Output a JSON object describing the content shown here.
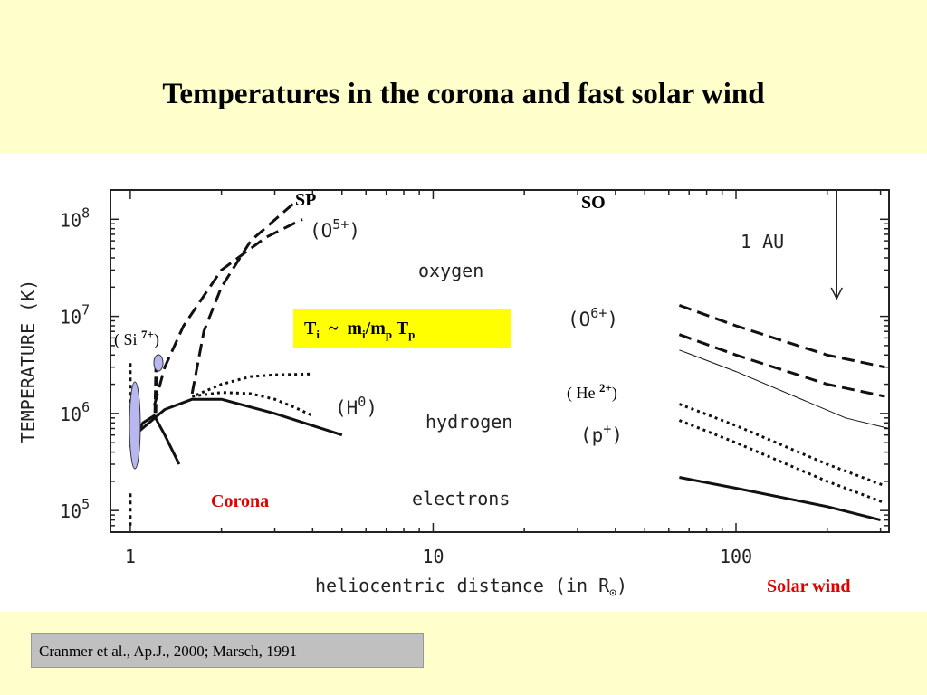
{
  "slide": {
    "title": "Temperatures in the corona and fast solar wind",
    "source": "Cranmer et al., Ap.J., 2000;  Marsch, 1991"
  },
  "formula": {
    "t1": "T",
    "s1": "i",
    "op": "  ~  ",
    "m1": "m",
    "s2": "i",
    "slash": "/m",
    "s3": "p",
    "t2": " T",
    "s4": "p"
  },
  "colors": {
    "background": "#ffffcc",
    "formula_box": "#ffff00",
    "red_label": "#e00000",
    "si_marker": "#b8b8f0"
  },
  "annotations": {
    "sp": "SP",
    "so": "SO",
    "corona": "Corona",
    "solar_wind": "Solar wind",
    "si_base": "( Si ",
    "si_sup": "7+",
    "si_close": ")",
    "he_base": "( He ",
    "he_sup": "2+",
    "he_close": ")",
    "one_au": "1  AU",
    "o5_base": "(O",
    "o5_sup": "5+",
    "o5_close": ")",
    "o6_base": "(O",
    "o6_sup": "6+",
    "o6_close": ")",
    "h0_base": "(H",
    "h0_sup": "0",
    "h0_close": ")",
    "p_base": "(p",
    "p_sup": "+",
    "p_close": ")",
    "oxygen": "oxygen",
    "hydrogen": "hydrogen",
    "electrons": "electrons"
  },
  "chart_data": {
    "type": "line",
    "xlabel_prefix": "heliocentric distance (in R",
    "xlabel_suffix": ")",
    "ylabel": "TEMPERATURE (K)",
    "x_scale": "log",
    "y_scale": "log",
    "xlim": [
      0.86,
      320
    ],
    "ylim": [
      60000,
      200000000
    ],
    "x_ticks": [
      {
        "value": 1,
        "label": "1"
      },
      {
        "value": 10,
        "label": "10"
      },
      {
        "value": 100,
        "label": "100"
      }
    ],
    "y_ticks": [
      {
        "value": 100000,
        "base": "10",
        "exp": "5"
      },
      {
        "value": 1000000,
        "base": "10",
        "exp": "6"
      },
      {
        "value": 10000000,
        "base": "10",
        "exp": "7"
      },
      {
        "value": 100000000,
        "base": "10",
        "exp": "8"
      }
    ],
    "grid": false,
    "vertical_marker_x": 215,
    "series": [
      {
        "group": "oxygen",
        "species": "O5+",
        "style": "dashed",
        "width": 3,
        "points": [
          [
            1.6,
            1600000
          ],
          [
            1.75,
            7000000
          ],
          [
            2.0,
            20000000
          ],
          [
            2.5,
            60000000
          ],
          [
            3.5,
            150000000
          ]
        ]
      },
      {
        "group": "oxygen",
        "species": "O5+",
        "style": "dashed",
        "width": 3,
        "points": [
          [
            1.2,
            1200000
          ],
          [
            1.3,
            3000000
          ],
          [
            1.5,
            8000000
          ],
          [
            2.0,
            30000000
          ],
          [
            2.8,
            65000000
          ],
          [
            3.7,
            100000000
          ]
        ]
      },
      {
        "group": "oxygen",
        "species": "O6+",
        "style": "dashed",
        "width": 3,
        "points": [
          [
            65,
            13000000
          ],
          [
            100,
            8000000
          ],
          [
            200,
            4000000
          ],
          [
            310,
            3000000
          ]
        ]
      },
      {
        "group": "oxygen",
        "species": "O6+",
        "style": "dashed",
        "width": 3,
        "points": [
          [
            65,
            6500000
          ],
          [
            100,
            4000000
          ],
          [
            200,
            2000000
          ],
          [
            310,
            1500000
          ]
        ]
      },
      {
        "group": "hydrogen",
        "species": "H0",
        "style": "dotted",
        "width": 3,
        "points": [
          [
            1.65,
            1550000
          ],
          [
            2.0,
            2000000
          ],
          [
            2.5,
            2400000
          ],
          [
            3.0,
            2500000
          ],
          [
            4.0,
            2550000
          ]
        ]
      },
      {
        "group": "hydrogen",
        "species": "H0",
        "style": "dotted",
        "width": 3,
        "points": [
          [
            1.6,
            1500000
          ],
          [
            2.0,
            1650000
          ],
          [
            2.5,
            1600000
          ],
          [
            3.0,
            1400000
          ],
          [
            3.5,
            1150000
          ],
          [
            4.0,
            950000
          ]
        ]
      },
      {
        "group": "hydrogen",
        "species": "p+",
        "style": "dotted",
        "width": 3,
        "points": [
          [
            65,
            1250000
          ],
          [
            100,
            750000
          ],
          [
            200,
            300000
          ],
          [
            310,
            180000
          ]
        ]
      },
      {
        "group": "hydrogen",
        "species": "p+",
        "style": "dotted",
        "width": 3,
        "points": [
          [
            65,
            850000
          ],
          [
            100,
            500000
          ],
          [
            200,
            200000
          ],
          [
            310,
            120000
          ]
        ]
      },
      {
        "group": "electrons",
        "species": "e",
        "style": "solid",
        "width": 3,
        "points": [
          [
            1.0,
            550000
          ],
          [
            1.3,
            1100000
          ],
          [
            1.6,
            1400000
          ],
          [
            2.0,
            1400000
          ],
          [
            3.0,
            1000000
          ],
          [
            5.0,
            600000
          ]
        ]
      },
      {
        "group": "electrons",
        "species": "e",
        "style": "solid",
        "width": 3,
        "points": [
          [
            1.0,
            450000
          ],
          [
            1.1,
            800000
          ],
          [
            1.2,
            950000
          ],
          [
            1.3,
            600000
          ],
          [
            1.45,
            300000
          ]
        ]
      },
      {
        "group": "electrons",
        "species": "e",
        "style": "solid",
        "width": 3,
        "points": [
          [
            65,
            220000
          ],
          [
            100,
            170000
          ],
          [
            200,
            110000
          ],
          [
            300,
            80000
          ]
        ]
      },
      {
        "group": "helium",
        "species": "He2+",
        "style": "thin",
        "width": 1,
        "points": [
          [
            65,
            4500000
          ],
          [
            100,
            2700000
          ],
          [
            230,
            900000
          ],
          [
            320,
            700000
          ]
        ]
      },
      {
        "group": "silicon",
        "species": "Si7+",
        "style": "thick-dashed",
        "width": 4,
        "points": [
          [
            1.22,
            3300000
          ],
          [
            1.21,
            1000000
          ]
        ]
      },
      {
        "group": "base",
        "species": "base",
        "style": "thick-dotted",
        "width": 3,
        "points": [
          [
            1.0,
            3300000
          ],
          [
            1.0,
            500000
          ]
        ]
      },
      {
        "group": "base",
        "species": "base",
        "style": "thick-dotted",
        "width": 3,
        "points": [
          [
            1.0,
            150000
          ],
          [
            1.0,
            70000
          ]
        ]
      }
    ]
  }
}
